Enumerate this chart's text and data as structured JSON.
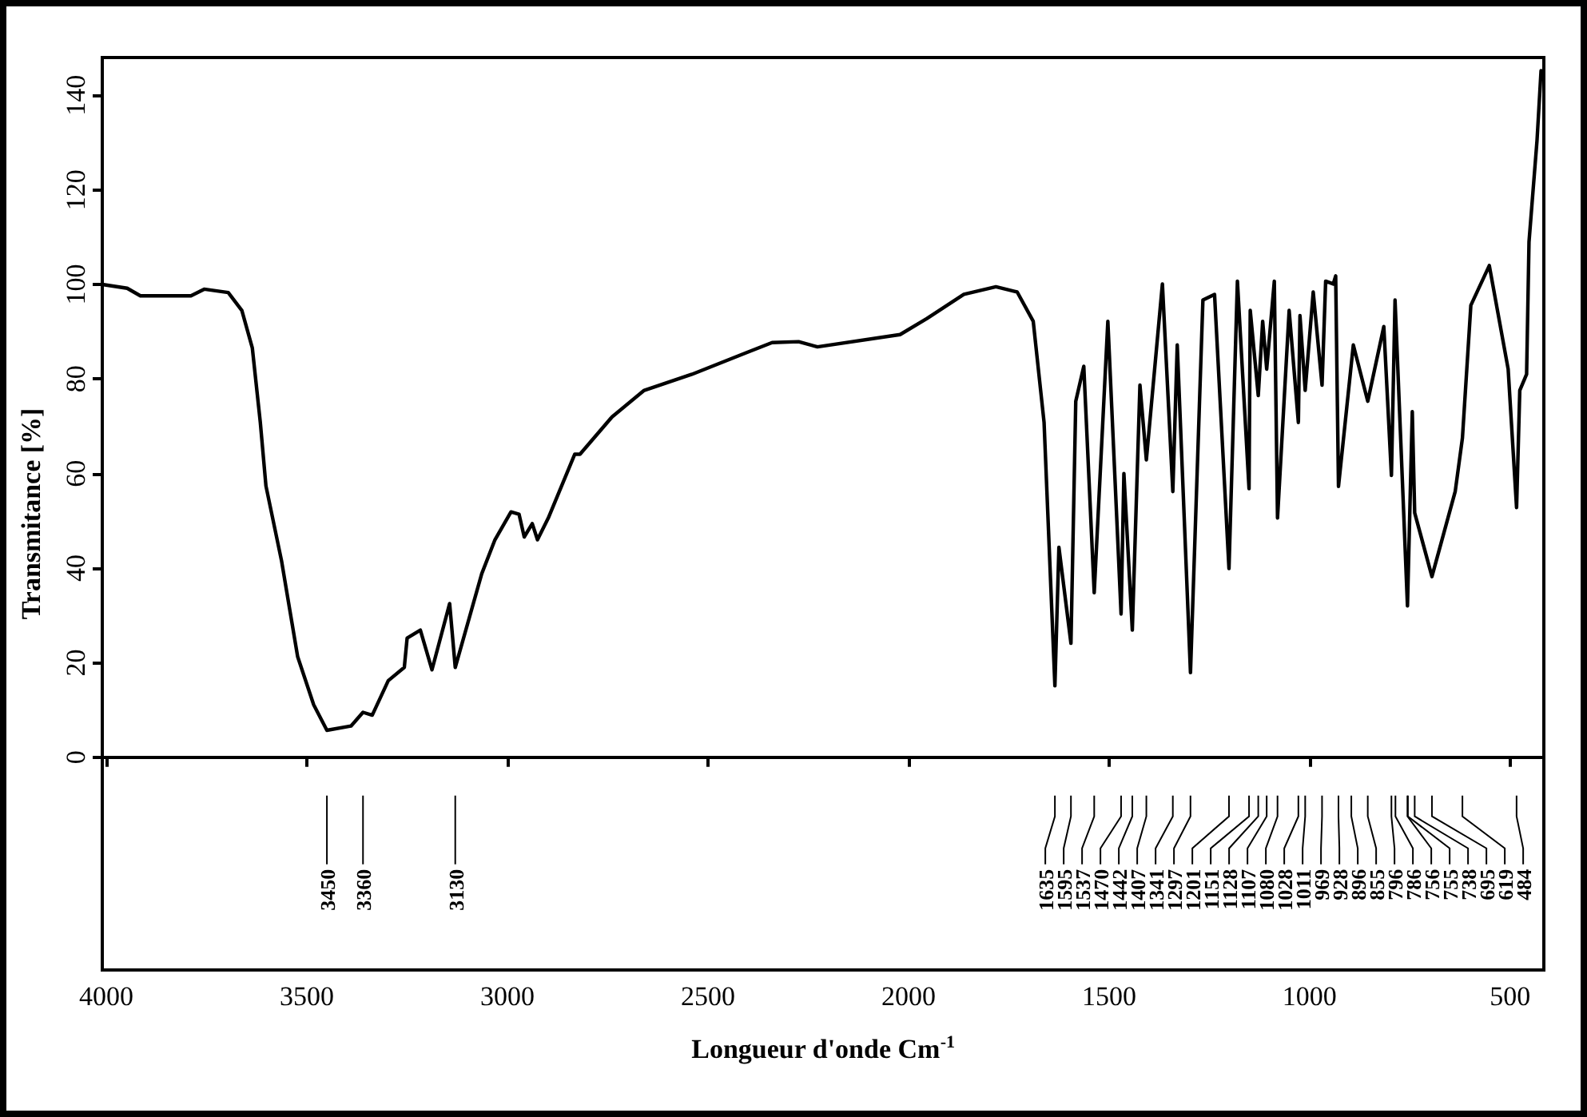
{
  "chart_data": {
    "type": "line",
    "xlabel": "Longueur d'onde Cm$^{-1}$",
    "ylabel": "Transmitance [%]",
    "xlim": [
      4010,
      416
    ],
    "xticks": [
      4000,
      3500,
      3000,
      2500,
      2000,
      1500,
      1000,
      500
    ],
    "ylim": [
      -45,
      148
    ],
    "yticks": [
      0,
      20,
      40,
      60,
      80,
      100,
      120,
      140
    ],
    "series": [
      {
        "color": "#000000",
        "x": [
          4010,
          3948,
          3915,
          3789,
          3756,
          3696,
          3662,
          3636,
          3616,
          3602,
          3563,
          3523,
          3483,
          3450,
          3390,
          3360,
          3337,
          3297,
          3257,
          3250,
          3217,
          3188,
          3144,
          3130,
          3064,
          3031,
          2991,
          2971,
          2958,
          2938,
          2925,
          2898,
          2832,
          2819,
          2739,
          2659,
          2540,
          2406,
          2340,
          2274,
          2227,
          2021,
          1954,
          1862,
          1782,
          1729,
          1689,
          1662,
          1635,
          1625,
          1595,
          1583,
          1563,
          1537,
          1503,
          1470,
          1463,
          1442,
          1423,
          1407,
          1367,
          1341,
          1330,
          1297,
          1266,
          1237,
          1201,
          1180,
          1151,
          1148,
          1128,
          1117,
          1107,
          1088,
          1080,
          1051,
          1028,
          1024,
          1011,
          991,
          969,
          960,
          941,
          935,
          928,
          891,
          855,
          815,
          796,
          787,
          756,
          744,
          738,
          695,
          637,
          619,
          598,
          552,
          505,
          484,
          476,
          459,
          453,
          433,
          423
        ],
        "values": [
          100,
          99.2,
          97.6,
          97.6,
          99,
          98.3,
          94.5,
          86.6,
          70.8,
          57.4,
          41.5,
          21.3,
          11.1,
          5.7,
          6.6,
          9.5,
          8.9,
          16.2,
          19,
          25.2,
          26.9,
          18.5,
          32.5,
          19,
          38.8,
          46,
          51.9,
          51.4,
          46.6,
          49.4,
          46,
          50.6,
          64.1,
          64.1,
          72,
          77.6,
          81,
          85.5,
          87.7,
          87.9,
          86.8,
          89.4,
          92.8,
          97.9,
          99.5,
          98.4,
          92.2,
          70.8,
          15.1,
          44.4,
          24.1,
          75.3,
          82.7,
          34.8,
          92.2,
          30.3,
          60,
          26.9,
          78.7,
          62.9,
          100.1,
          56.2,
          87.2,
          17.9,
          96.7,
          97.9,
          39.9,
          100.7,
          56.8,
          94.5,
          76.5,
          92.2,
          82.1,
          100.7,
          50.6,
          94.5,
          70.8,
          93.4,
          77.6,
          98.4,
          78.7,
          100.7,
          100.1,
          101.8,
          57.3,
          87.2,
          75.3,
          91.1,
          59.6,
          96.7,
          32,
          73.1,
          51.7,
          38.2,
          56.2,
          67.5,
          95.6,
          104,
          82.1,
          52.8,
          77.6,
          81,
          109,
          130.5,
          145.2
        ]
      }
    ],
    "annotations": [
      {
        "text": "3450",
        "x": 3450
      },
      {
        "text": "3360",
        "x": 3360
      },
      {
        "text": "3130",
        "x": 3130
      },
      {
        "text": "1635",
        "x": 1635
      },
      {
        "text": "1595",
        "x": 1595
      },
      {
        "text": "1537",
        "x": 1537
      },
      {
        "text": "1470",
        "x": 1470
      },
      {
        "text": "1442",
        "x": 1442
      },
      {
        "text": "1407",
        "x": 1407
      },
      {
        "text": "1341",
        "x": 1341
      },
      {
        "text": "1297",
        "x": 1297
      },
      {
        "text": "1201",
        "x": 1201
      },
      {
        "text": "1151",
        "x": 1151
      },
      {
        "text": "1128",
        "x": 1128
      },
      {
        "text": "1107",
        "x": 1107
      },
      {
        "text": "1080",
        "x": 1080
      },
      {
        "text": "1028",
        "x": 1028
      },
      {
        "text": "1011",
        "x": 1011
      },
      {
        "text": "969",
        "x": 969
      },
      {
        "text": "928",
        "x": 928
      },
      {
        "text": "896",
        "x": 896
      },
      {
        "text": "855",
        "x": 855
      },
      {
        "text": "796",
        "x": 796
      },
      {
        "text": "786",
        "x": 786
      },
      {
        "text": "755",
        "x": 755
      },
      {
        "text": "756",
        "x": 756
      },
      {
        "text": "738",
        "x": 738
      },
      {
        "text": "695",
        "x": 695
      },
      {
        "text": "619",
        "x": 619
      },
      {
        "text": "484",
        "x": 484
      }
    ]
  }
}
